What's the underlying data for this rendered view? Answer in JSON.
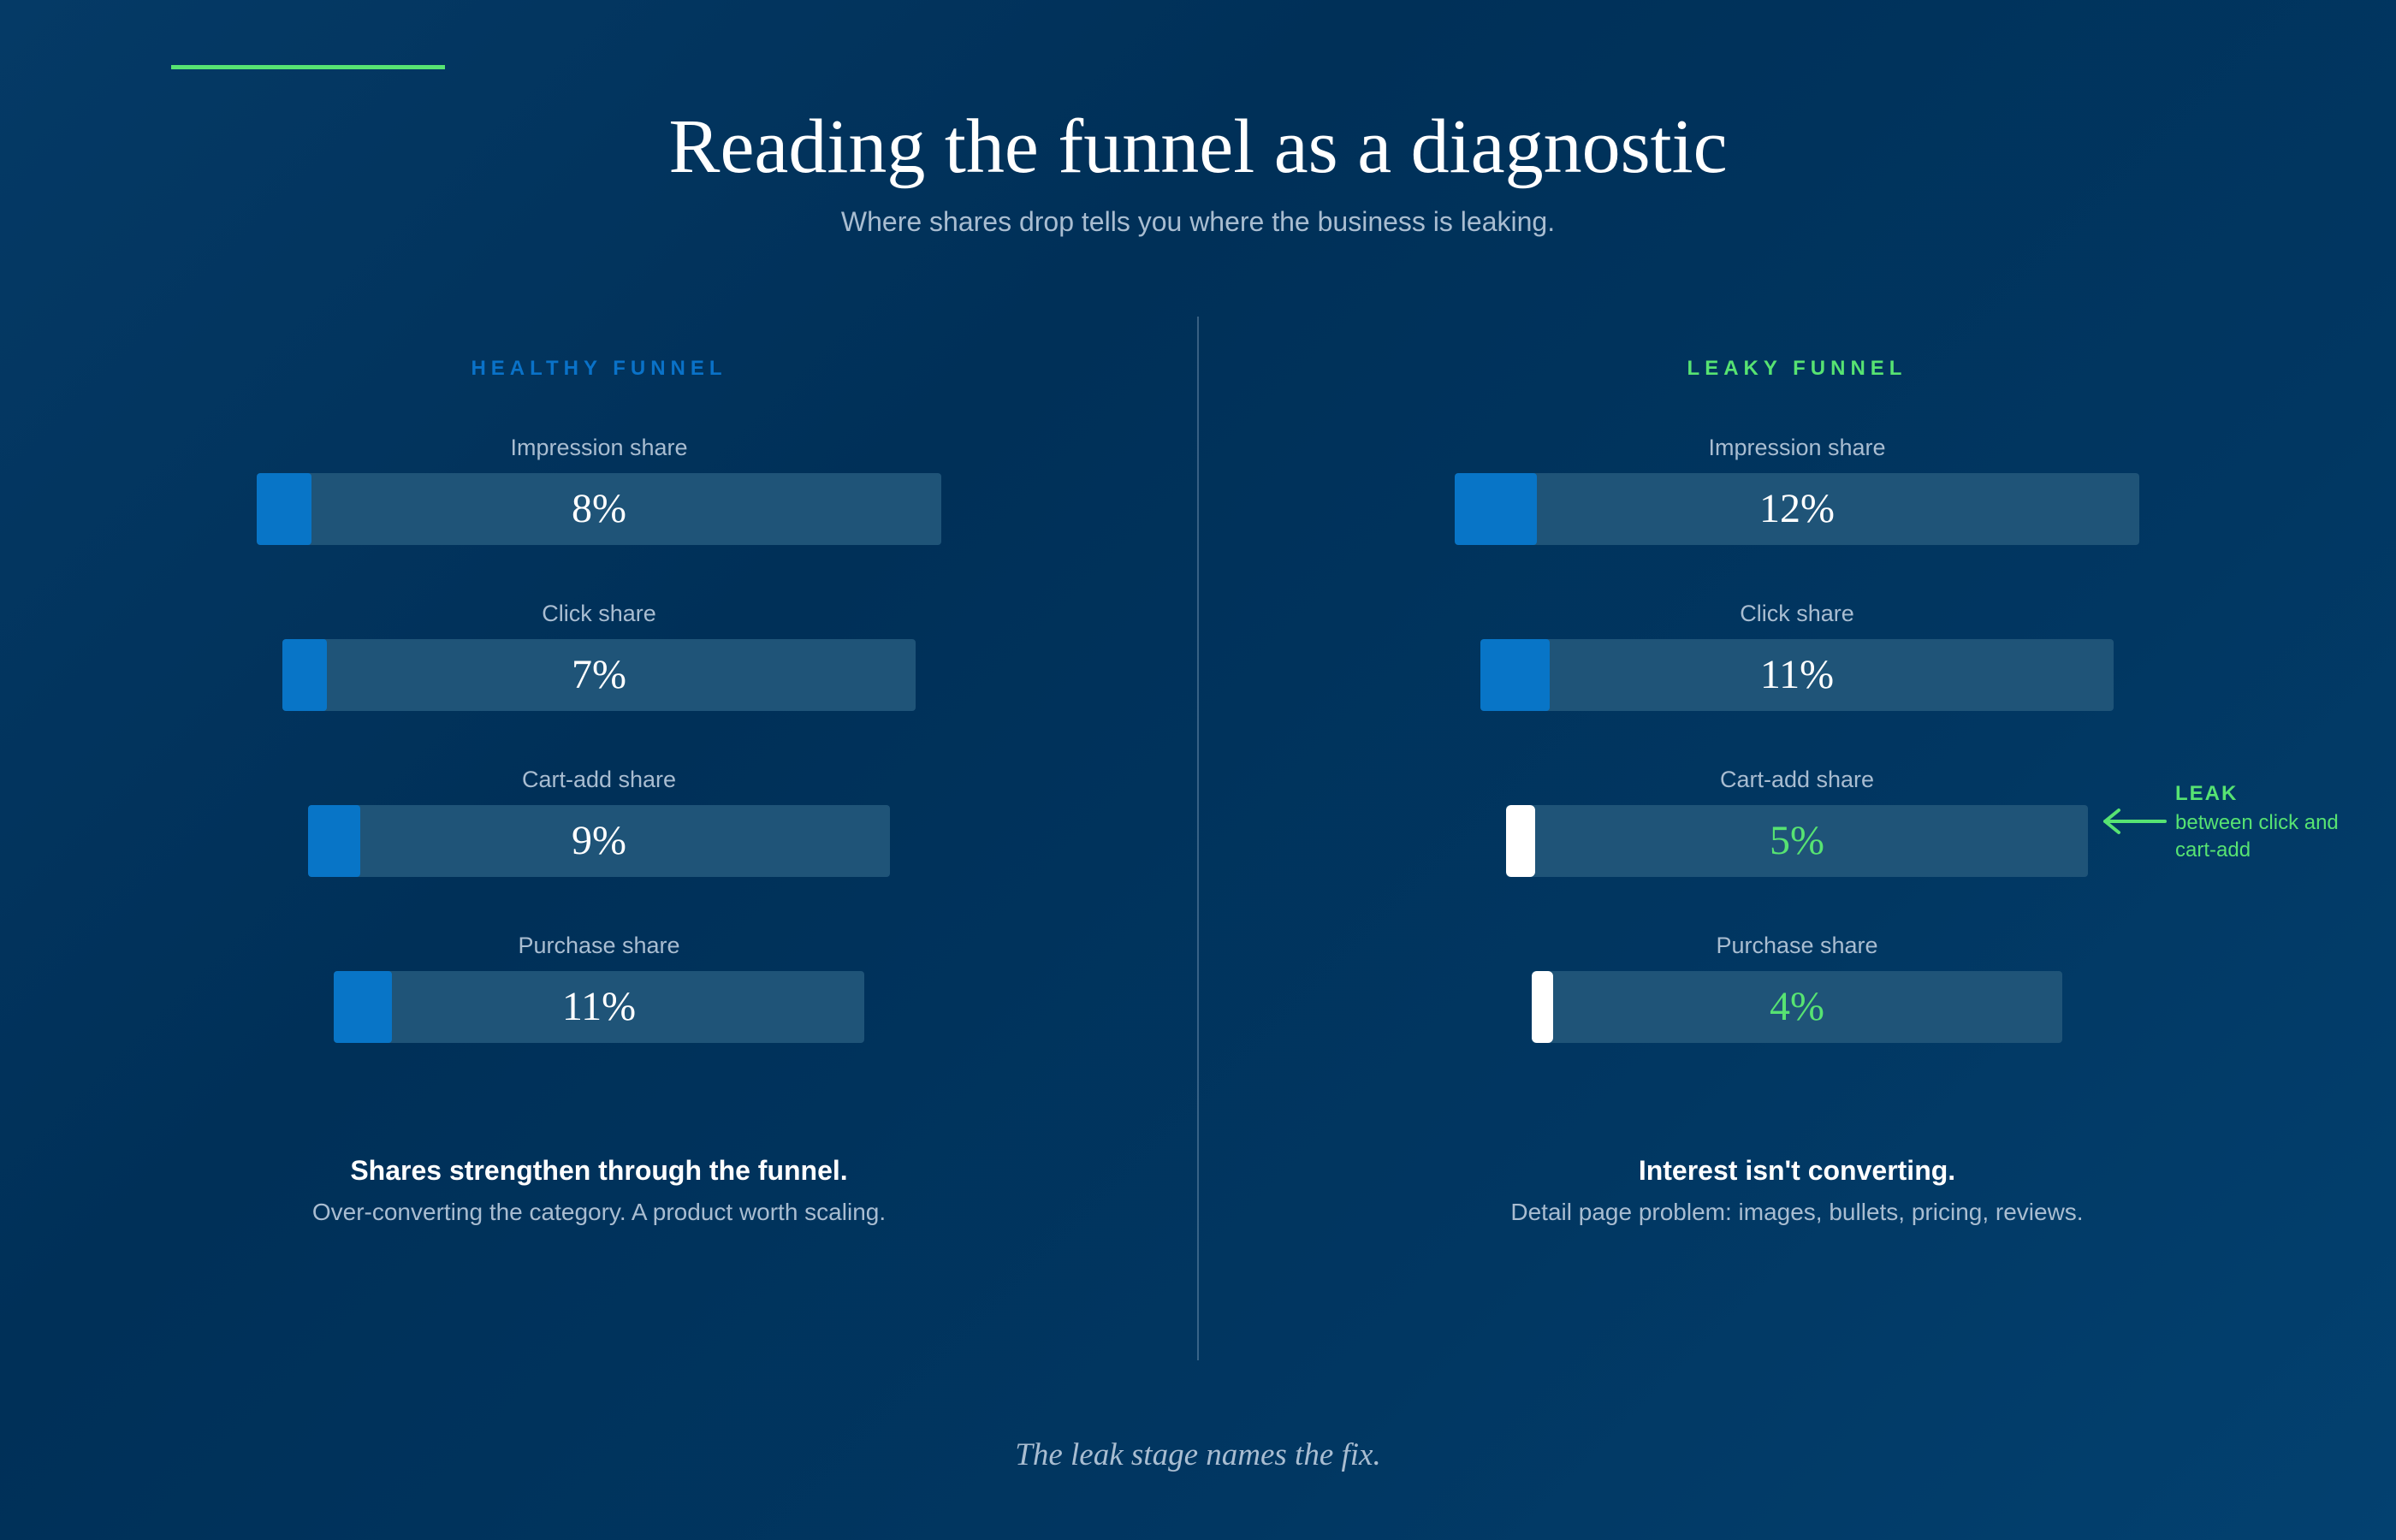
{
  "header": {
    "title": "Reading the funnel as a diagnostic",
    "subtitle": "Where shares drop tells you where the business is leaking."
  },
  "colors": {
    "background": "#003058",
    "accent_green": "#57e372",
    "accent_blue": "#0875c7",
    "bar_track": "#1f5478",
    "muted_text": "#a9bdd1"
  },
  "panels": {
    "healthy": {
      "heading": "HEALTHY FUNNEL",
      "stages": [
        {
          "label": "Impression share",
          "value": "8%",
          "percent": 8
        },
        {
          "label": "Click share",
          "value": "7%",
          "percent": 7
        },
        {
          "label": "Cart-add share",
          "value": "9%",
          "percent": 9
        },
        {
          "label": "Purchase share",
          "value": "11%",
          "percent": 11
        }
      ],
      "verdict_title": "Shares strengthen through the funnel.",
      "verdict_detail": "Over-converting the category. A product worth scaling."
    },
    "leaky": {
      "heading": "LEAKY FUNNEL",
      "stages": [
        {
          "label": "Impression share",
          "value": "12%",
          "percent": 12,
          "highlight": false
        },
        {
          "label": "Click share",
          "value": "11%",
          "percent": 11,
          "highlight": false
        },
        {
          "label": "Cart-add share",
          "value": "5%",
          "percent": 5,
          "highlight": true
        },
        {
          "label": "Purchase share",
          "value": "4%",
          "percent": 4,
          "highlight": true
        }
      ],
      "verdict_title": "Interest isn't converting.",
      "verdict_detail": "Detail page problem: images, bullets, pricing, reviews."
    }
  },
  "leak_callout": {
    "label": "LEAK",
    "detail": "between click and cart-add",
    "icon": "arrow-left-icon"
  },
  "footer": {
    "text": "The leak stage names the fix."
  }
}
